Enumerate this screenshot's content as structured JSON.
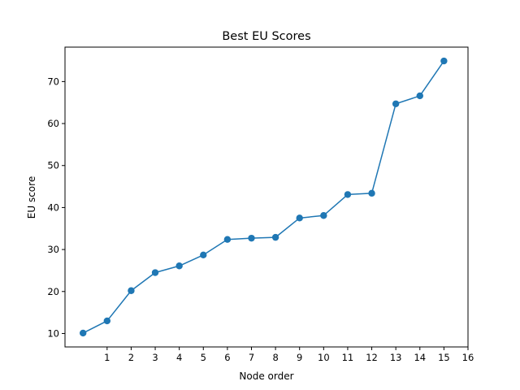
{
  "chart_data": {
    "type": "line",
    "title": "Best EU Scores",
    "xlabel": "Node order",
    "ylabel": "EU score",
    "x": [
      0,
      1,
      2,
      3,
      4,
      5,
      6,
      7,
      8,
      9,
      10,
      11,
      12,
      13,
      14,
      15
    ],
    "series": [
      {
        "values": [
          10.1,
          13.0,
          20.2,
          24.5,
          26.1,
          28.7,
          32.4,
          32.7,
          32.9,
          37.5,
          38.1,
          43.1,
          43.4,
          64.7,
          66.6,
          74.9
        ]
      }
    ],
    "xticks": [
      1,
      2,
      3,
      4,
      5,
      6,
      7,
      8,
      9,
      10,
      11,
      12,
      13,
      14,
      15,
      16
    ],
    "yticks": [
      10,
      20,
      30,
      40,
      50,
      60,
      70
    ],
    "xlim": [
      -0.75,
      16
    ],
    "ylim": [
      6.8,
      78.2
    ],
    "grid": false,
    "color": "#1f77b4"
  }
}
